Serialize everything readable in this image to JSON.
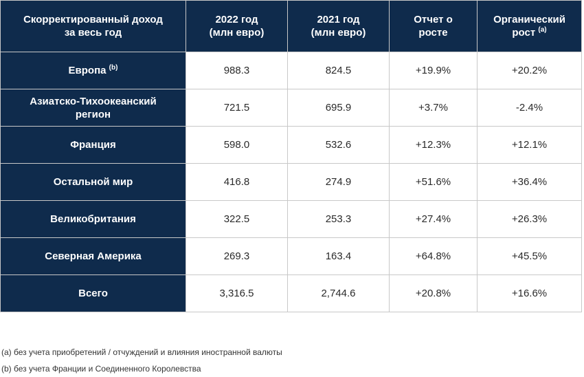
{
  "table": {
    "headers": [
      {
        "text": "Скорректированный доход за весь год",
        "sup": ""
      },
      {
        "text": "2022 год (млн евро)",
        "sup": ""
      },
      {
        "text": "2021 год (млн евро)",
        "sup": ""
      },
      {
        "text": "Отчет о росте",
        "sup": ""
      },
      {
        "text": "Органический рост",
        "sup": "(a)"
      }
    ],
    "rows": [
      {
        "region": "Европа",
        "sup": "(b)",
        "y2022": "988.3",
        "y2021": "824.5",
        "growth": "+19.9%",
        "organic": "+20.2%"
      },
      {
        "region": "Азиатско-Тихоокеанский регион",
        "sup": "",
        "y2022": "721.5",
        "y2021": "695.9",
        "growth": "+3.7%",
        "organic": "-2.4%"
      },
      {
        "region": "Франция",
        "sup": "",
        "y2022": "598.0",
        "y2021": "532.6",
        "growth": "+12.3%",
        "organic": "+12.1%"
      },
      {
        "region": "Остальной мир",
        "sup": "",
        "y2022": "416.8",
        "y2021": "274.9",
        "growth": "+51.6%",
        "organic": "+36.4%"
      },
      {
        "region": "Великобритания",
        "sup": "",
        "y2022": "322.5",
        "y2021": "253.3",
        "growth": "+27.4%",
        "organic": "+26.3%"
      },
      {
        "region": "Северная Америка",
        "sup": "",
        "y2022": "269.3",
        "y2021": "163.4",
        "growth": "+64.8%",
        "organic": "+45.5%"
      },
      {
        "region": "Всего",
        "sup": "",
        "y2022": "3,316.5",
        "y2021": "2,744.6",
        "growth": "+20.8%",
        "organic": "+16.6%"
      }
    ]
  },
  "footnotes": [
    "(a) без учета приобретений / отчуждений и влияния иностранной валюты",
    "(b) без учета Франции и Соединенного Королевства"
  ],
  "colors": {
    "header_bg": "#0f2b4c",
    "header_text": "#ffffff",
    "border": "#c8c8c8"
  }
}
